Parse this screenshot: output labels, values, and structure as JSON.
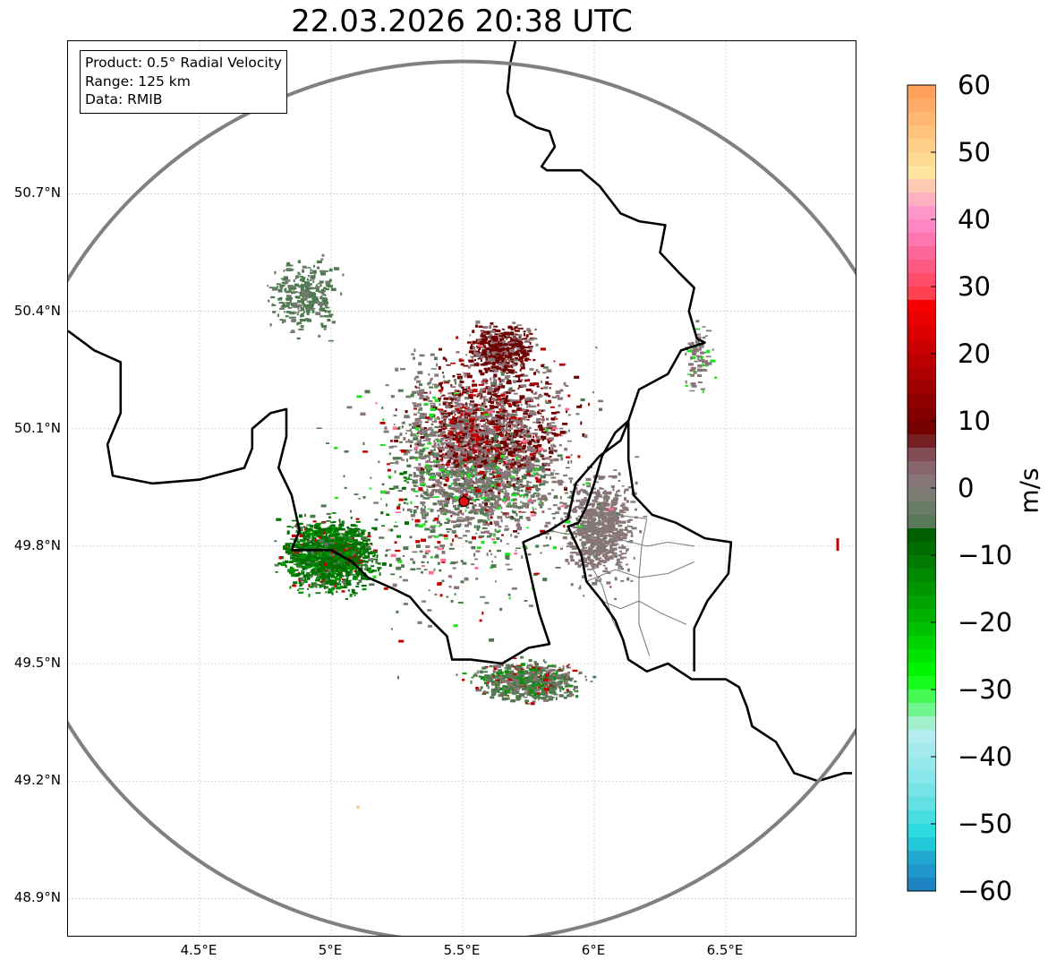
{
  "title": "22.03.2026 20:38 UTC",
  "info": {
    "product": "Product: 0.5° Radial Velocity",
    "range": "Range: 125 km",
    "data": "Data: RMIB"
  },
  "map": {
    "lon_range": [
      4.0,
      7.0
    ],
    "lat_range": [
      48.8,
      51.09
    ],
    "radar_site": {
      "lon": 5.505,
      "lat": 49.914
    },
    "range_km": 125,
    "lat_ticks": [
      {
        "value": 50.7,
        "label": "50.7°N"
      },
      {
        "value": 50.4,
        "label": "50.4°N"
      },
      {
        "value": 50.1,
        "label": "50.1°N"
      },
      {
        "value": 49.8,
        "label": "49.8°N"
      },
      {
        "value": 49.5,
        "label": "49.5°N"
      },
      {
        "value": 49.2,
        "label": "49.2°N"
      },
      {
        "value": 48.9,
        "label": "48.9°N"
      }
    ],
    "lon_ticks": [
      {
        "value": 4.5,
        "label": "4.5°E"
      },
      {
        "value": 5.0,
        "label": "5°E"
      },
      {
        "value": 5.5,
        "label": "5.5°E"
      },
      {
        "value": 6.0,
        "label": "6°E"
      },
      {
        "value": 6.5,
        "label": "6.5°E"
      }
    ],
    "borders": {
      "germany_belgium_lux_west": [
        [
          5.7,
          51.09
        ],
        [
          5.68,
          51.03
        ],
        [
          5.67,
          50.96
        ],
        [
          5.7,
          50.9
        ],
        [
          5.78,
          50.87
        ],
        [
          5.83,
          50.86
        ],
        [
          5.85,
          50.82
        ],
        [
          5.8,
          50.77
        ],
        [
          5.82,
          50.76
        ],
        [
          5.95,
          50.76
        ],
        [
          6.02,
          50.72
        ],
        [
          6.1,
          50.65
        ],
        [
          6.17,
          50.63
        ],
        [
          6.27,
          50.62
        ],
        [
          6.25,
          50.55
        ],
        [
          6.32,
          50.5
        ],
        [
          6.38,
          50.46
        ],
        [
          6.36,
          50.4
        ],
        [
          6.39,
          50.33
        ],
        [
          6.42,
          50.32
        ],
        [
          6.33,
          50.3
        ],
        [
          6.28,
          50.24
        ],
        [
          6.17,
          50.2
        ],
        [
          6.13,
          50.12
        ],
        [
          6.1,
          50.07
        ],
        [
          6.02,
          50.03
        ],
        [
          5.93,
          49.96
        ],
        [
          5.9,
          49.87
        ],
        [
          5.83,
          49.84
        ],
        [
          5.73,
          49.81
        ],
        [
          5.76,
          49.72
        ],
        [
          5.79,
          49.63
        ],
        [
          5.83,
          49.55
        ],
        [
          5.75,
          49.54
        ],
        [
          5.65,
          49.5
        ],
        [
          5.53,
          49.51
        ],
        [
          5.46,
          49.51
        ],
        [
          5.44,
          49.57
        ],
        [
          5.35,
          49.63
        ],
        [
          5.3,
          49.67
        ],
        [
          5.24,
          49.69
        ],
        [
          5.14,
          49.72
        ],
        [
          5.08,
          49.76
        ],
        [
          5.0,
          49.79
        ],
        [
          4.93,
          49.79
        ],
        [
          4.85,
          49.79
        ],
        [
          4.88,
          49.84
        ],
        [
          4.85,
          49.93
        ],
        [
          4.8,
          50.0
        ],
        [
          4.83,
          50.08
        ],
        [
          4.83,
          50.15
        ],
        [
          4.77,
          50.14
        ],
        [
          4.7,
          50.1
        ],
        [
          4.7,
          50.05
        ],
        [
          4.67,
          50.0
        ],
        [
          4.5,
          49.97
        ],
        [
          4.32,
          49.96
        ],
        [
          4.17,
          49.98
        ],
        [
          4.15,
          50.06
        ],
        [
          4.2,
          50.14
        ],
        [
          4.2,
          50.27
        ],
        [
          4.1,
          50.3
        ],
        [
          4.0,
          50.35
        ]
      ],
      "lux_germany_france": [
        [
          6.13,
          50.12
        ],
        [
          6.08,
          50.09
        ],
        [
          6.03,
          50.03
        ],
        [
          6.0,
          49.96
        ],
        [
          5.97,
          49.9
        ],
        [
          5.94,
          49.86
        ],
        [
          5.9,
          49.85
        ],
        [
          5.95,
          49.78
        ],
        [
          5.97,
          49.71
        ],
        [
          6.03,
          49.66
        ],
        [
          6.08,
          49.61
        ],
        [
          6.11,
          49.56
        ],
        [
          6.13,
          49.51
        ],
        [
          6.2,
          49.48
        ],
        [
          6.28,
          49.5
        ],
        [
          6.37,
          49.46
        ],
        [
          6.5,
          49.46
        ],
        [
          6.55,
          49.44
        ],
        [
          6.58,
          49.39
        ],
        [
          6.6,
          49.34
        ],
        [
          6.69,
          49.3
        ],
        [
          6.76,
          49.22
        ],
        [
          6.85,
          49.2
        ],
        [
          6.95,
          49.22
        ],
        [
          6.98,
          49.22
        ]
      ],
      "germany_west_lux": [
        [
          6.13,
          50.12
        ],
        [
          6.13,
          50.02
        ],
        [
          6.15,
          49.93
        ],
        [
          6.22,
          49.88
        ],
        [
          6.31,
          49.86
        ],
        [
          6.42,
          49.82
        ],
        [
          6.52,
          49.81
        ],
        [
          6.51,
          49.73
        ],
        [
          6.43,
          49.66
        ],
        [
          6.38,
          49.59
        ],
        [
          6.38,
          49.48
        ]
      ]
    },
    "admin_borders": [
      [
        [
          5.83,
          49.84
        ],
        [
          5.9,
          49.83
        ],
        [
          5.97,
          49.85
        ],
        [
          6.08,
          49.88
        ],
        [
          6.2,
          49.87
        ]
      ],
      [
        [
          6.0,
          49.8
        ],
        [
          6.08,
          49.82
        ],
        [
          6.2,
          49.8
        ],
        [
          6.28,
          49.81
        ],
        [
          6.38,
          49.8
        ]
      ],
      [
        [
          5.97,
          49.71
        ],
        [
          6.08,
          49.74
        ],
        [
          6.17,
          49.72
        ],
        [
          6.28,
          49.73
        ],
        [
          6.38,
          49.76
        ]
      ],
      [
        [
          6.03,
          49.66
        ],
        [
          6.1,
          49.64
        ],
        [
          6.17,
          49.66
        ],
        [
          6.25,
          49.63
        ],
        [
          6.35,
          49.6
        ]
      ],
      [
        [
          6.2,
          49.87
        ],
        [
          6.18,
          49.8
        ],
        [
          6.17,
          49.72
        ],
        [
          6.17,
          49.6
        ],
        [
          6.21,
          49.52
        ]
      ],
      [
        [
          5.98,
          49.76
        ],
        [
          6.03,
          49.7
        ],
        [
          6.07,
          49.61
        ],
        [
          6.11,
          49.56
        ]
      ]
    ]
  },
  "colorbar": {
    "vmin": -60,
    "vmax": 60,
    "unit_label": "m/s",
    "ticks": [
      "60",
      "50",
      "40",
      "30",
      "20",
      "10",
      "0",
      "−10",
      "−20",
      "−30",
      "−40",
      "−50",
      "−60"
    ],
    "tick_values": [
      60,
      50,
      40,
      30,
      20,
      10,
      0,
      -10,
      -20,
      -30,
      -40,
      -50,
      -60
    ],
    "stops": [
      {
        "v": 60,
        "color": "#ff9a57"
      },
      {
        "v": 52,
        "color": "#ffc983"
      },
      {
        "v": 47,
        "color": "#ffe6a0"
      },
      {
        "v": 44,
        "color": "#ffbcbc"
      },
      {
        "v": 40,
        "color": "#ff8ccf"
      },
      {
        "v": 34,
        "color": "#ff6090"
      },
      {
        "v": 29,
        "color": "#ff4050"
      },
      {
        "v": 28,
        "color": "#ff0000"
      },
      {
        "v": 18,
        "color": "#b40000"
      },
      {
        "v": 8,
        "color": "#6e0000"
      },
      {
        "v": 6,
        "color": "#7e4048"
      },
      {
        "v": 2,
        "color": "#8d727a"
      },
      {
        "v": -1,
        "color": "#7c7c74"
      },
      {
        "v": -5,
        "color": "#587a58"
      },
      {
        "v": -6,
        "color": "#005800"
      },
      {
        "v": -20,
        "color": "#00b800"
      },
      {
        "v": -28,
        "color": "#00ff00"
      },
      {
        "v": -34,
        "color": "#88f3a8"
      },
      {
        "v": -36,
        "color": "#bceef0"
      },
      {
        "v": -46,
        "color": "#70e2e6"
      },
      {
        "v": -52,
        "color": "#20d8dc"
      },
      {
        "v": -55,
        "color": "#20a8d0"
      },
      {
        "v": -60,
        "color": "#1f7bc0"
      }
    ]
  }
}
